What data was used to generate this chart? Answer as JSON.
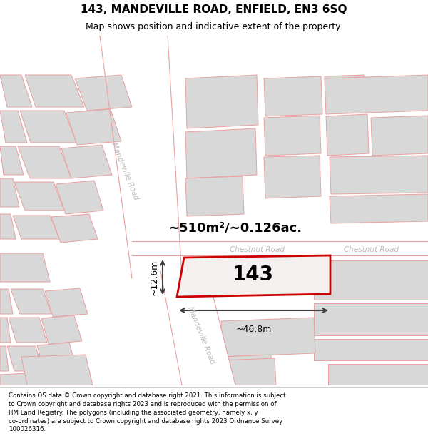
{
  "title": "143, MANDEVILLE ROAD, ENFIELD, EN3 6SQ",
  "subtitle": "Map shows position and indicative extent of the property.",
  "area_text": "~510m²/~0.126ac.",
  "label_143": "143",
  "width_label": "~46.8m",
  "height_label": "~12.6m",
  "road_label_chestnut1": "Chestnut Road",
  "road_label_chestnut2": "Chestnut Road",
  "road_label_mand_upper": "Mandeville Road",
  "road_label_mand_lower": "Mandeville Road",
  "footer": "Contains OS data © Crown copyright and database right 2021. This information is subject to Crown copyright and database rights 2023 and is reproduced with the permission of HM Land Registry. The polygons (including the associated geometry, namely x, y co-ordinates) are subject to Crown copyright and database rights 2023 Ordnance Survey 100026316.",
  "bg_color": "#ffffff",
  "building_fill": "#d8d8d8",
  "building_edge": "#e8a0a0",
  "highlight_fill": "#f5f0f0",
  "highlight_edge": "#cc0000",
  "road_line": "#e8a0a0",
  "dim_line_color": "#404040",
  "text_color": "#000000",
  "road_text_color": "#b8b8b8",
  "footer_color": "#000000"
}
